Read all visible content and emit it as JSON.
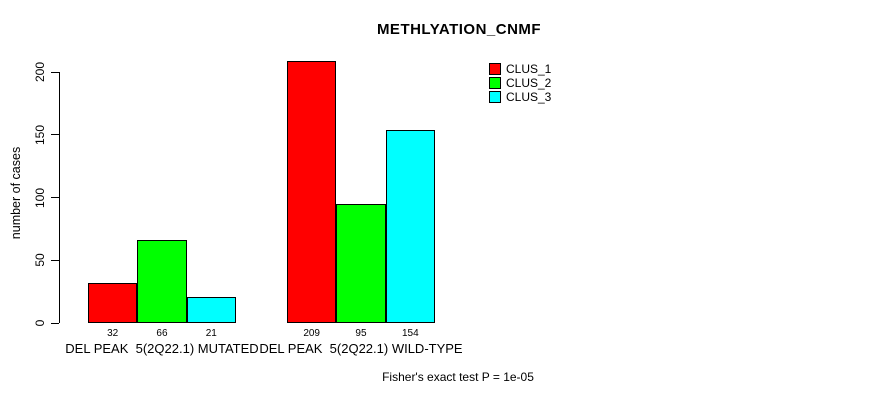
{
  "chart_data": {
    "type": "bar",
    "title": "METHLYATION_CNMF",
    "ylabel": "number of cases",
    "xlabel": "",
    "yticks": [
      0,
      50,
      100,
      150,
      200
    ],
    "ylim": [
      0,
      200
    ],
    "grid": false,
    "legend_position": "top-right",
    "bar_value_labels": true,
    "categories": [
      "DEL PEAK  5(2Q22.1) MUTATED",
      "DEL PEAK  5(2Q22.1) WILD-TYPE"
    ],
    "series": [
      {
        "name": "CLUS_1",
        "color": "#FF0000",
        "values": [
          32,
          209
        ]
      },
      {
        "name": "CLUS_2",
        "color": "#00FF00",
        "values": [
          66,
          95
        ]
      },
      {
        "name": "CLUS_3",
        "color": "#00FFFF",
        "values": [
          21,
          154
        ]
      }
    ]
  },
  "footer": {
    "caption": "Fisher's exact test P = 1e-05"
  }
}
